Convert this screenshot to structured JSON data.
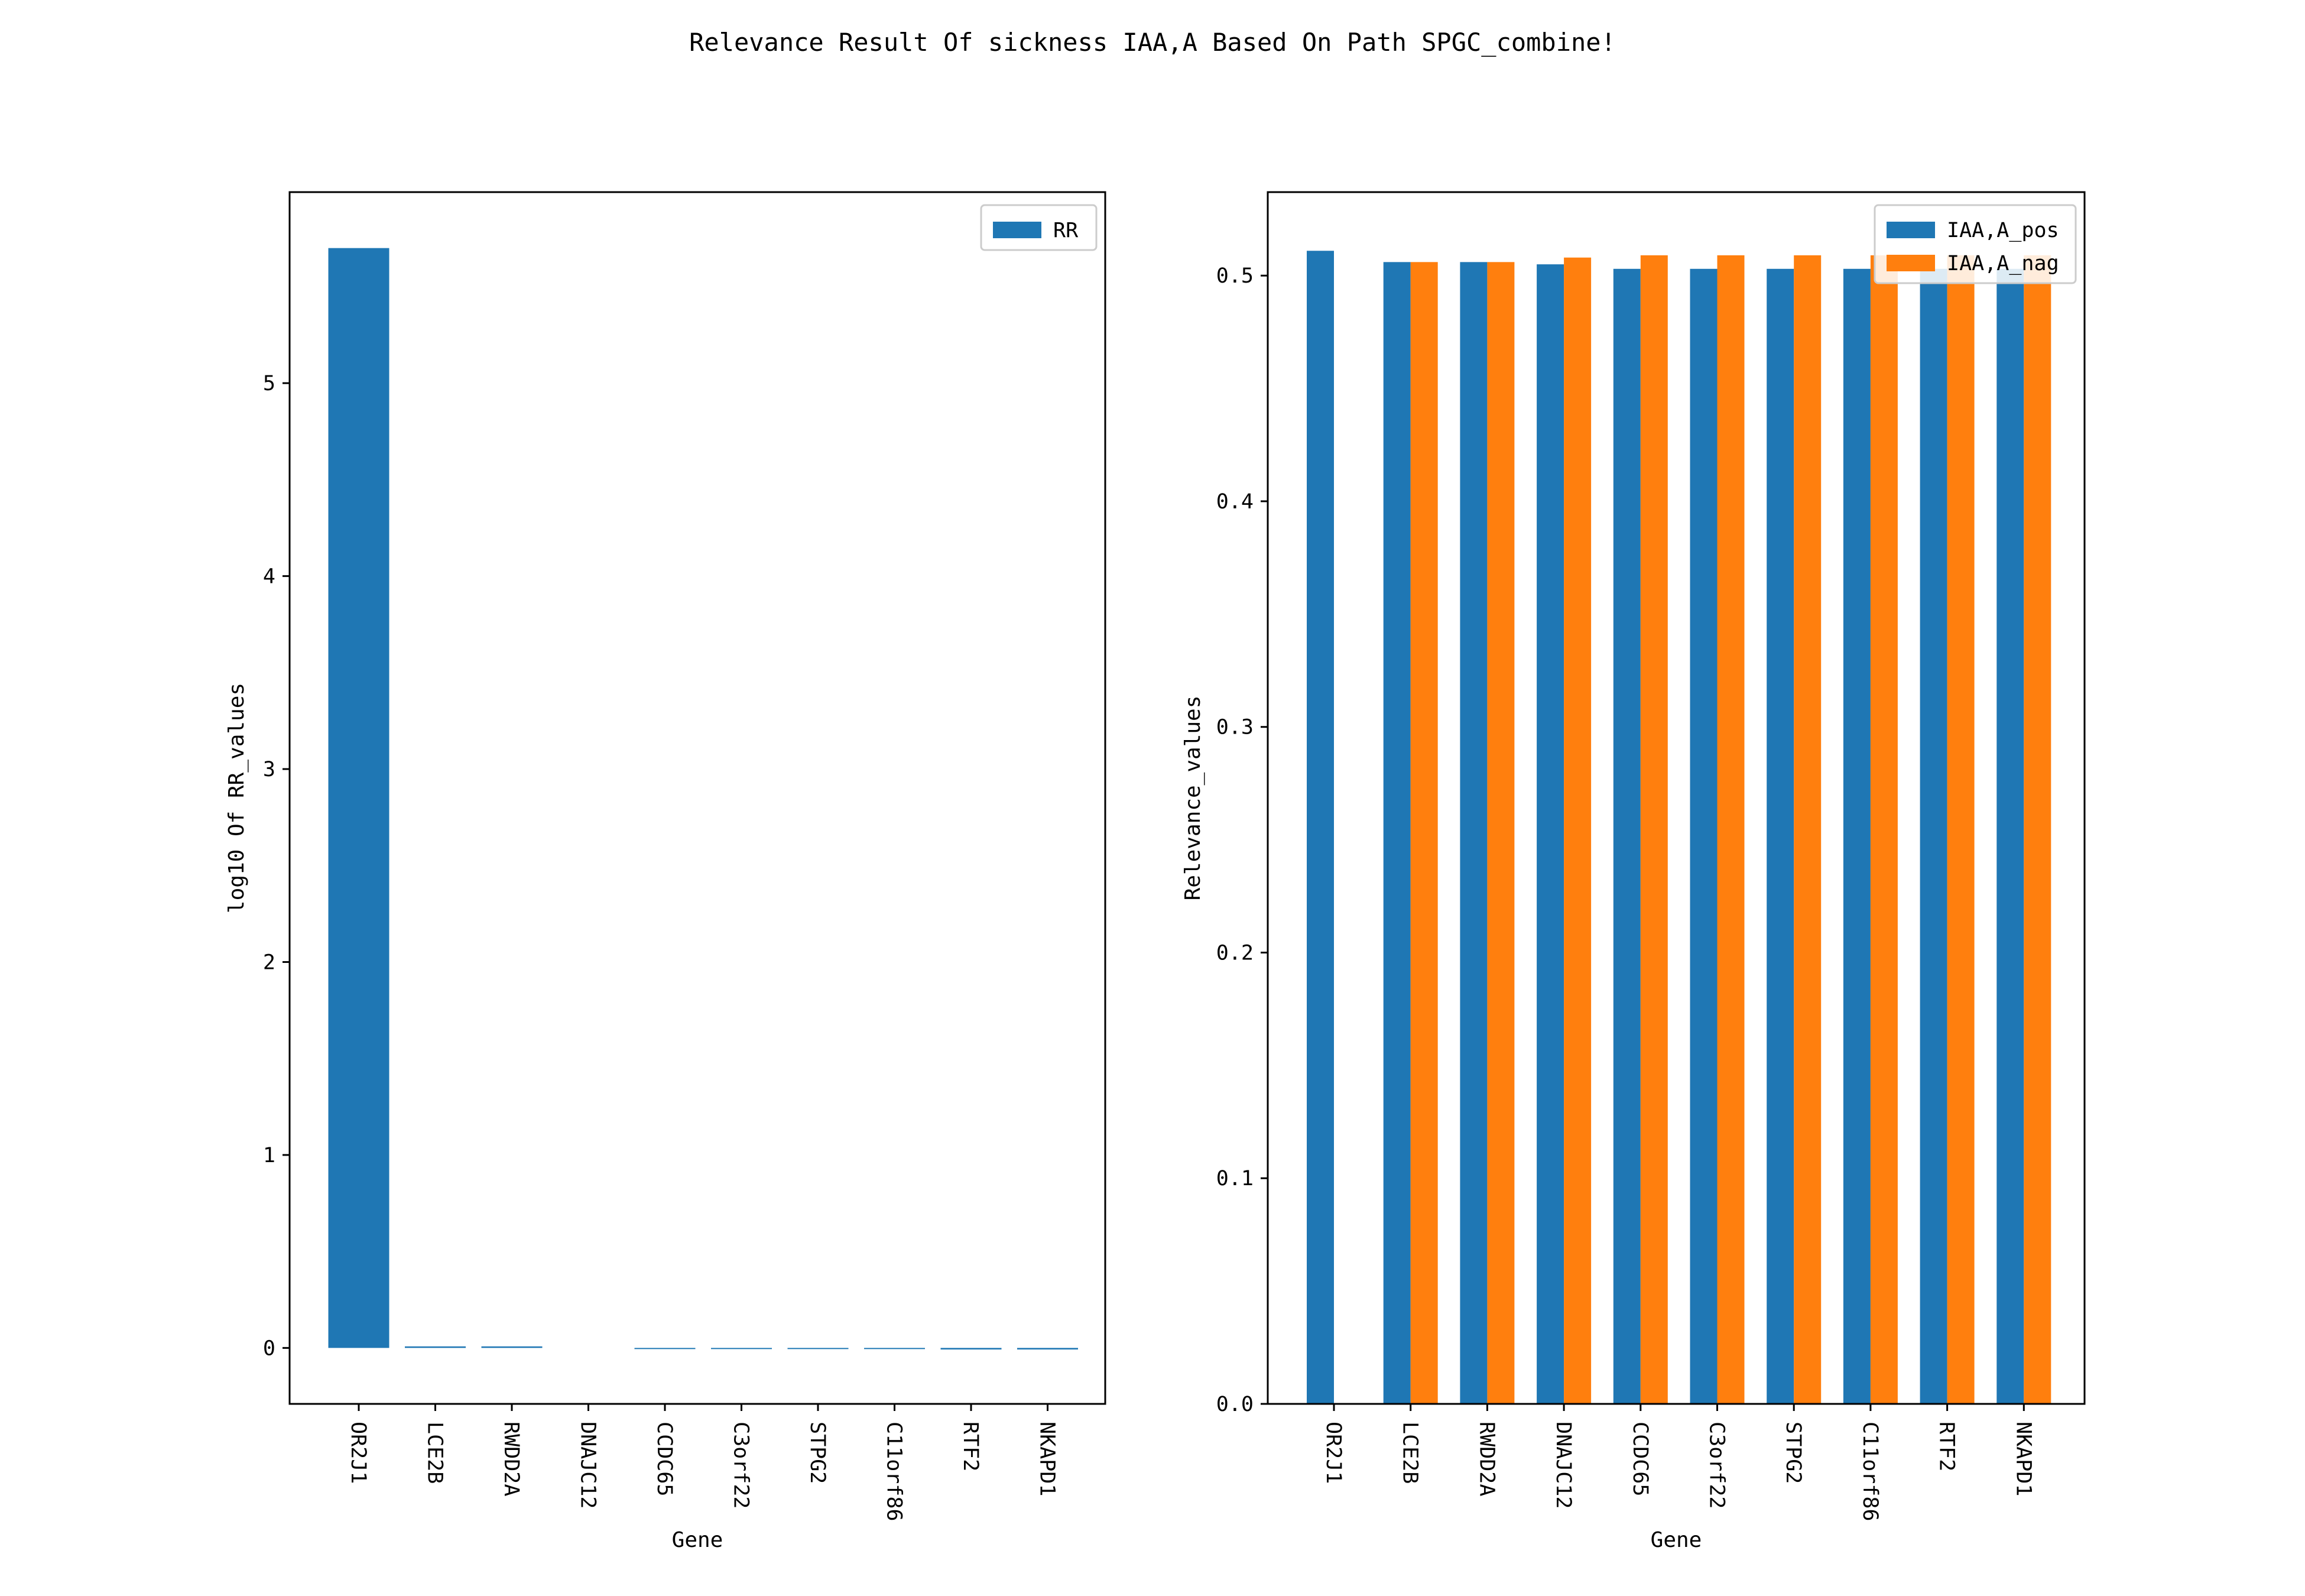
{
  "figure": {
    "title": "Relevance Result Of sickness IAA,A Based On Path SPGC_combine!"
  },
  "chart_data": [
    {
      "type": "bar",
      "categories": [
        "OR2J1",
        "LCE2B",
        "RWDD2A",
        "DNAJC12",
        "CCDC65",
        "C3orf22",
        "STPG2",
        "C11orf86",
        "RTF2",
        "NKAPD1"
      ],
      "series": [
        {
          "name": "RR",
          "color": "#1f77b4",
          "values": [
            5.7,
            0.008,
            0.008,
            0.0,
            -0.006,
            -0.006,
            -0.006,
            -0.006,
            -0.008,
            -0.008
          ]
        }
      ],
      "xlabel": "Gene",
      "ylabel": "log10 Of RR_values",
      "ylim": [
        -0.29,
        5.99
      ],
      "yticks": [
        0,
        1,
        2,
        3,
        4,
        5
      ],
      "legend": "top-right",
      "grid": false
    },
    {
      "type": "bar",
      "categories": [
        "OR2J1",
        "LCE2B",
        "RWDD2A",
        "DNAJC12",
        "CCDC65",
        "C3orf22",
        "STPG2",
        "C11orf86",
        "RTF2",
        "NKAPD1"
      ],
      "series": [
        {
          "name": "IAA,A_pos",
          "color": "#1f77b4",
          "values": [
            0.511,
            0.506,
            0.506,
            0.505,
            0.503,
            0.503,
            0.503,
            0.503,
            0.503,
            0.503
          ]
        },
        {
          "name": "IAA,A_nag",
          "color": "#ff7f0e",
          "values": [
            0.0,
            0.506,
            0.506,
            0.508,
            0.509,
            0.509,
            0.509,
            0.509,
            0.509,
            0.509
          ]
        }
      ],
      "xlabel": "Gene",
      "ylabel": "Relevance_values",
      "ylim": [
        0,
        0.537
      ],
      "yticks": [
        0.0,
        0.1,
        0.2,
        0.3,
        0.4,
        0.5
      ],
      "legend": "top-right",
      "grid": false
    }
  ]
}
